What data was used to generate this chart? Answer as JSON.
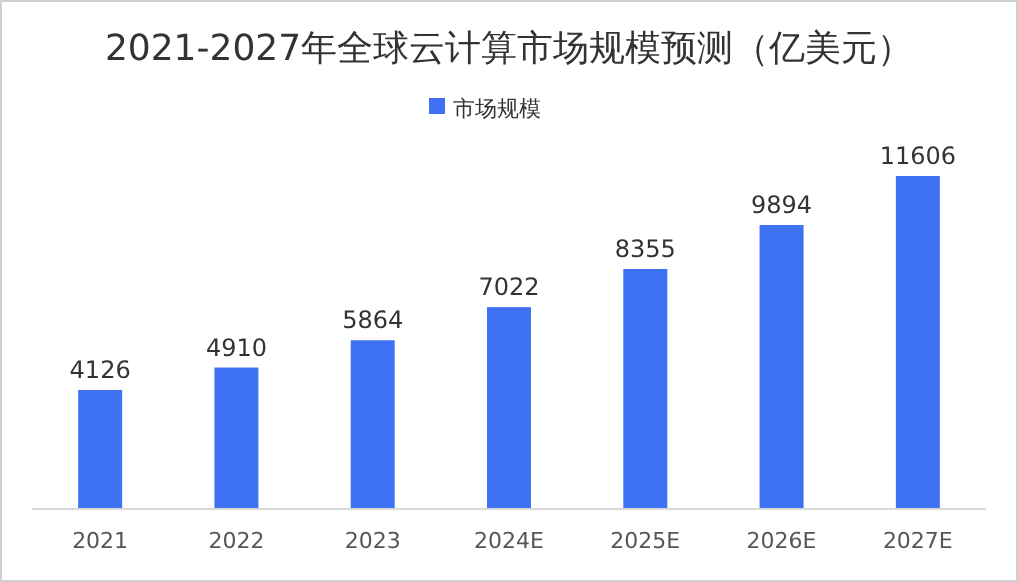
{
  "chart_data": {
    "type": "bar",
    "title": "2021-2027年全球云计算市场规模预测（亿美元）",
    "categories": [
      "2021",
      "2022",
      "2023",
      "2024E",
      "2025E",
      "2026E",
      "2027E"
    ],
    "series": [
      {
        "name": "市场规模",
        "color": "#3f72f2",
        "values": [
          4126,
          4910,
          5864,
          7022,
          8355,
          9894,
          11606
        ]
      }
    ],
    "data_labels": true,
    "legend": "top",
    "grid": false
  }
}
